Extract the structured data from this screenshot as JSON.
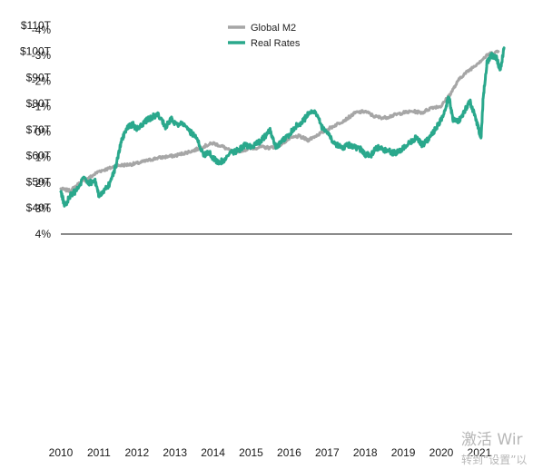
{
  "chart_data": {
    "type": "line",
    "panels": [
      {
        "name": "top",
        "y_ticks": [
          "$110T",
          "$100T",
          "$90T",
          "$80T",
          "$70T",
          "$60T",
          "$50T",
          "$40T"
        ],
        "ylim": [
          40,
          110
        ],
        "series": [
          {
            "name": "Global M2",
            "color": "#a6a6a6",
            "x": [
              2010.0,
              2010.25,
              2010.5,
              2010.75,
              2011.0,
              2011.25,
              2011.5,
              2011.75,
              2012.0,
              2012.25,
              2012.5,
              2012.75,
              2013.0,
              2013.25,
              2013.5,
              2013.75,
              2014.0,
              2014.25,
              2014.5,
              2014.75,
              2015.0,
              2015.25,
              2015.5,
              2015.75,
              2016.0,
              2016.25,
              2016.5,
              2016.75,
              2017.0,
              2017.25,
              2017.5,
              2017.75,
              2018.0,
              2018.25,
              2018.5,
              2018.75,
              2019.0,
              2019.25,
              2019.5,
              2019.75,
              2020.0,
              2020.25,
              2020.5,
              2020.75,
              2021.0,
              2021.25,
              2021.5
            ],
            "values": [
              47.2,
              46.5,
              49.5,
              51.5,
              54.0,
              55.0,
              56.2,
              56.5,
              57.0,
              58.0,
              59.0,
              59.5,
              60.0,
              61.0,
              62.0,
              63.5,
              64.8,
              63.5,
              61.5,
              62.0,
              62.8,
              63.3,
              63.0,
              64.0,
              66.5,
              67.5,
              66.0,
              68.0,
              70.0,
              72.0,
              74.0,
              76.5,
              77.0,
              75.0,
              74.5,
              75.5,
              76.5,
              77.0,
              76.5,
              78.5,
              79.0,
              84.0,
              90.0,
              93.0,
              96.0,
              99.0,
              100.0
            ]
          }
        ]
      },
      {
        "name": "bottom",
        "y_ticks": [
          "4%",
          "3%",
          "2%",
          "1%",
          "0%",
          "-1%",
          "-2%",
          "-3%",
          "-4%"
        ],
        "ylim": [
          -4,
          4
        ],
        "series": [
          {
            "name": "Real Rates",
            "color": "#2aa88c",
            "x": [
              2010.0,
              2010.1,
              2010.25,
              2010.4,
              2010.6,
              2010.75,
              2010.9,
              2011.0,
              2011.1,
              2011.3,
              2011.45,
              2011.6,
              2011.75,
              2011.9,
              2012.0,
              2012.2,
              2012.4,
              2012.55,
              2012.75,
              2012.9,
              2013.0,
              2013.2,
              2013.4,
              2013.55,
              2013.75,
              2013.9,
              2014.0,
              2014.15,
              2014.3,
              2014.5,
              2014.7,
              2014.85,
              2015.0,
              2015.2,
              2015.35,
              2015.5,
              2015.65,
              2015.8,
              2016.0,
              2016.15,
              2016.35,
              2016.5,
              2016.7,
              2016.85,
              2017.0,
              2017.2,
              2017.4,
              2017.55,
              2017.75,
              2017.9,
              2018.0,
              2018.15,
              2018.3,
              2018.5,
              2018.7,
              2018.85,
              2019.0,
              2019.2,
              2019.35,
              2019.5,
              2019.65,
              2019.8,
              2020.0,
              2020.1,
              2020.2,
              2020.3,
              2020.45,
              2020.6,
              2020.75,
              2020.9,
              2021.0,
              2021.05,
              2021.1,
              2021.2,
              2021.3,
              2021.45,
              2021.55,
              2021.65
            ],
            "values": [
              2.3,
              2.9,
              2.5,
              2.3,
              1.8,
              2.0,
              1.9,
              2.5,
              2.4,
              2.0,
              1.3,
              0.3,
              -0.2,
              -0.3,
              -0.1,
              -0.4,
              -0.6,
              -0.7,
              -0.2,
              -0.5,
              -0.3,
              -0.3,
              0.0,
              0.2,
              0.9,
              0.8,
              1.0,
              1.2,
              1.1,
              0.8,
              0.7,
              0.5,
              0.6,
              0.4,
              0.2,
              -0.1,
              0.6,
              0.4,
              0.1,
              -0.2,
              -0.4,
              -0.7,
              -0.8,
              -0.2,
              0.0,
              0.5,
              0.6,
              0.5,
              0.6,
              0.7,
              0.9,
              0.9,
              0.6,
              0.7,
              0.8,
              0.8,
              0.6,
              0.4,
              0.2,
              0.5,
              0.3,
              0.0,
              -0.5,
              -0.9,
              -1.4,
              -0.5,
              -0.4,
              -0.8,
              -1.2,
              -0.6,
              0.0,
              0.2,
              -1.3,
              -2.7,
              -3.0,
              -2.9,
              -2.4,
              -3.3
            ]
          }
        ]
      }
    ],
    "x_ticks": [
      "2010",
      "2011",
      "2012",
      "2013",
      "2014",
      "2015",
      "2016",
      "2017",
      "2018",
      "2019",
      "2020",
      "2021"
    ],
    "xlim": [
      2010,
      2021.75
    ],
    "legend": {
      "placement": "top-center",
      "entries": [
        {
          "label": "Global M2",
          "color": "#a6a6a6"
        },
        {
          "label": "Real Rates",
          "color": "#2aa88c"
        }
      ]
    },
    "grid": false
  },
  "watermark": {
    "line1": "激活 Wir",
    "line2": "转到“设置”以"
  }
}
